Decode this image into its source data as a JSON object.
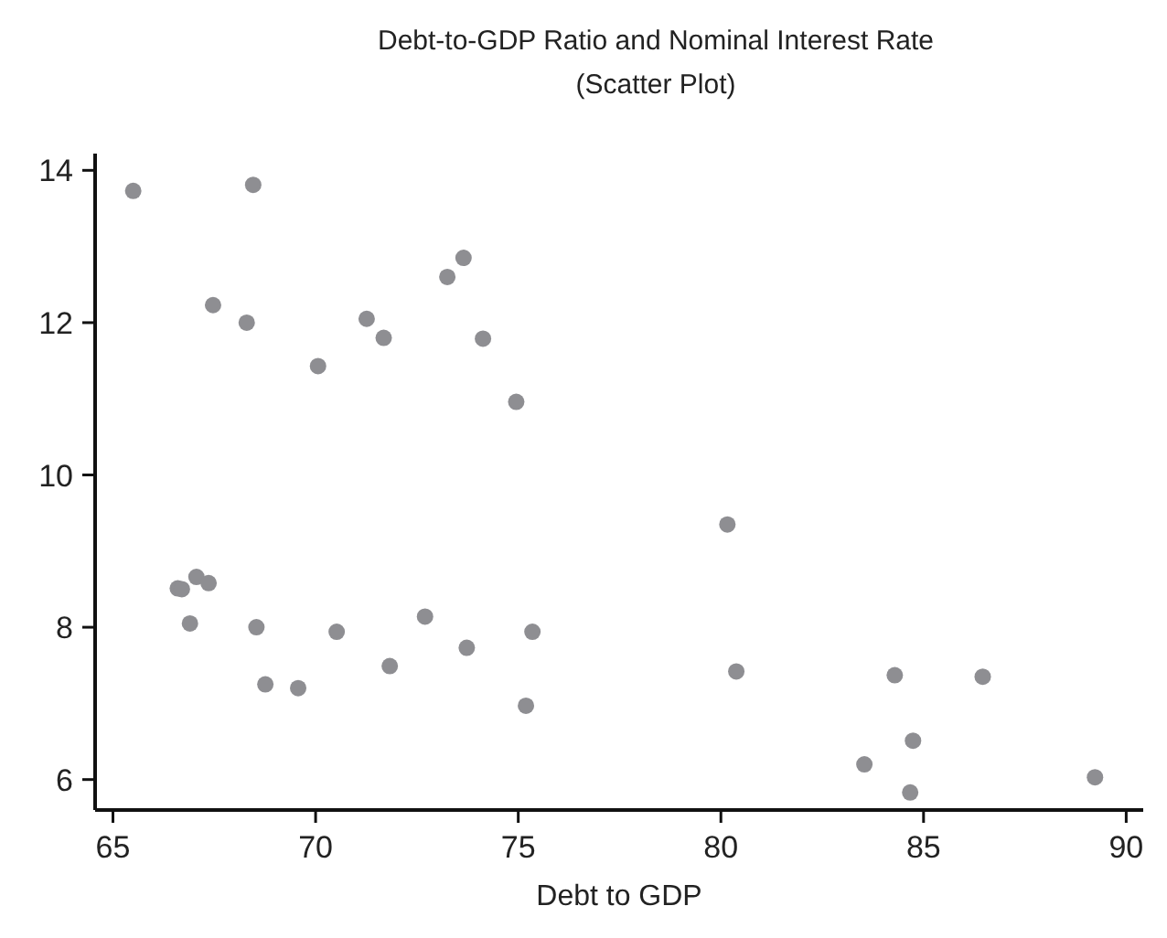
{
  "chart_data": {
    "type": "scatter",
    "title": "Debt-to-GDP Ratio and Nominal Interest Rate",
    "subtitle": "(Scatter Plot)",
    "xlabel": "Debt to GDP",
    "series": [
      {
        "color": "#8e8e92",
        "x": [
          65.5,
          68.46,
          67.47,
          68.3,
          70.06,
          71.26,
          71.68,
          73.25,
          73.65,
          74.13,
          74.95,
          66.6,
          66.7,
          67.06,
          67.36,
          66.9,
          68.54,
          68.76,
          69.57,
          70.52,
          71.83,
          72.7,
          73.73,
          75.35,
          75.19,
          80.16,
          80.38,
          84.29,
          86.46,
          84.74,
          83.54,
          84.67,
          89.23
        ],
        "values": [
          13.73,
          13.81,
          12.23,
          12.0,
          11.43,
          12.05,
          11.8,
          12.6,
          12.85,
          11.79,
          10.96,
          8.51,
          8.5,
          8.66,
          8.58,
          8.05,
          8.0,
          7.25,
          7.2,
          7.94,
          7.49,
          8.14,
          7.73,
          7.94,
          6.97,
          9.35,
          7.42,
          7.37,
          7.35,
          6.51,
          6.2,
          5.83,
          6.03
        ]
      }
    ],
    "xlim": [
      64.56,
      90.42
    ],
    "ylim": [
      5.6,
      14.22
    ],
    "xticks": [
      65,
      70,
      75,
      80,
      85,
      90
    ],
    "yticks": [
      6,
      8,
      10,
      12,
      14
    ],
    "marker": "circle",
    "grid": false
  }
}
